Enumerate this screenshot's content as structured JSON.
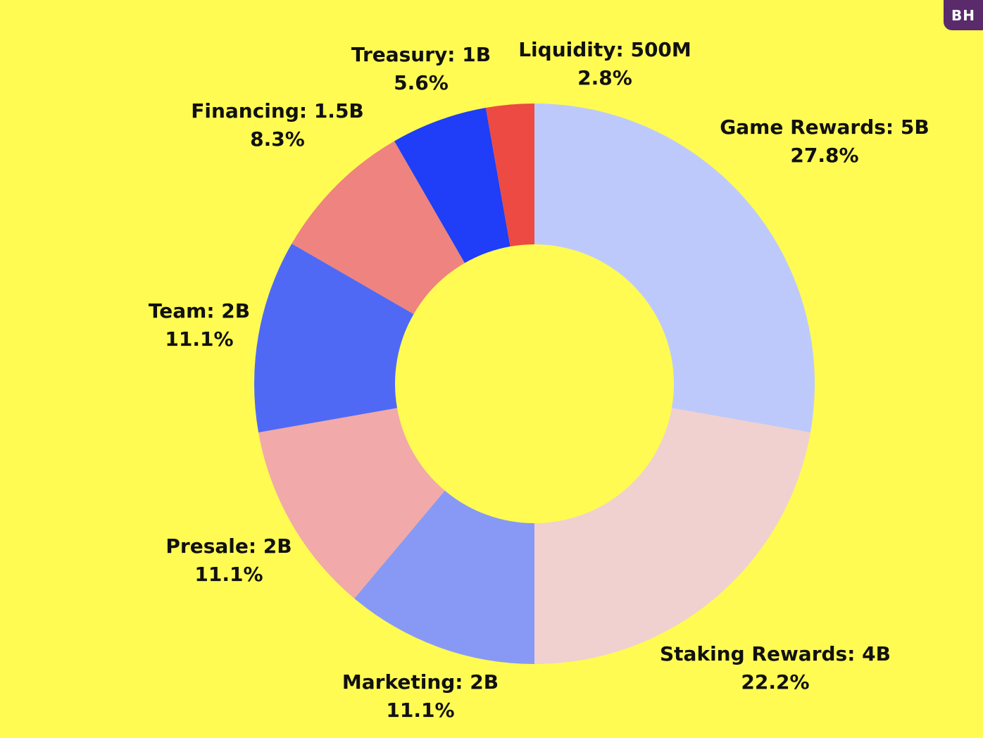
{
  "badge": "BH",
  "colors": {
    "background": "#fffb53"
  },
  "chart_data": {
    "type": "pie",
    "donut": true,
    "slices": [
      {
        "label": "Game Rewards",
        "value_text": "5B",
        "value": 5.0,
        "percent": 27.8,
        "color": "#bec9fb"
      },
      {
        "label": "Staking Rewards",
        "value_text": "4B",
        "value": 4.0,
        "percent": 22.2,
        "color": "#f1d0d0"
      },
      {
        "label": "Marketing",
        "value_text": "2B",
        "value": 2.0,
        "percent": 11.1,
        "color": "#8899f5"
      },
      {
        "label": "Presale",
        "value_text": "2B",
        "value": 2.0,
        "percent": 11.1,
        "color": "#f2a9a9"
      },
      {
        "label": "Team",
        "value_text": "2B",
        "value": 2.0,
        "percent": 11.1,
        "color": "#5069f5"
      },
      {
        "label": "Financing",
        "value_text": "1.5B",
        "value": 1.5,
        "percent": 8.3,
        "color": "#ee837f"
      },
      {
        "label": "Treasury",
        "value_text": "1B",
        "value": 1.0,
        "percent": 5.6,
        "color": "#203df7"
      },
      {
        "label": "Liquidity",
        "value_text": "500M",
        "value": 0.5,
        "percent": 2.8,
        "color": "#ec4a42"
      }
    ]
  }
}
